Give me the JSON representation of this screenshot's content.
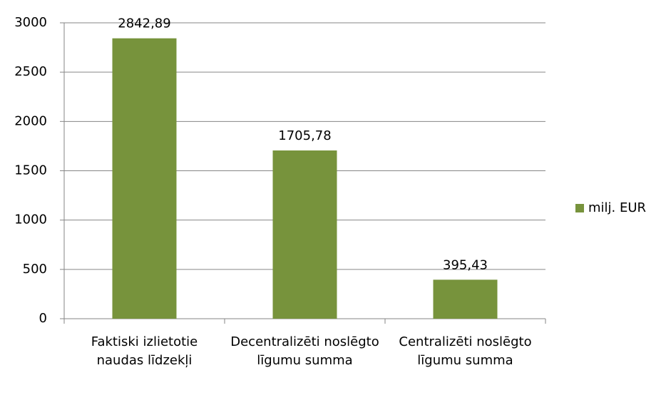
{
  "chart_data": {
    "type": "bar",
    "categories": [
      "Faktiski izlietotie naudas līdzekļi",
      "Decentralizēti noslēgto līgumu summa",
      "Centralizēti noslēgto līgumu summa"
    ],
    "series": [
      {
        "name": "milj. EUR",
        "color": "#77933c",
        "values": [
          2842.89,
          1705.78,
          395.43
        ],
        "value_labels": [
          "2842,89",
          "1705,78",
          "395,43"
        ]
      }
    ],
    "ylim": [
      0,
      3000
    ],
    "yticks": [
      0,
      500,
      1000,
      1500,
      2000,
      2500,
      3000
    ],
    "grid": true,
    "legend": "right"
  }
}
